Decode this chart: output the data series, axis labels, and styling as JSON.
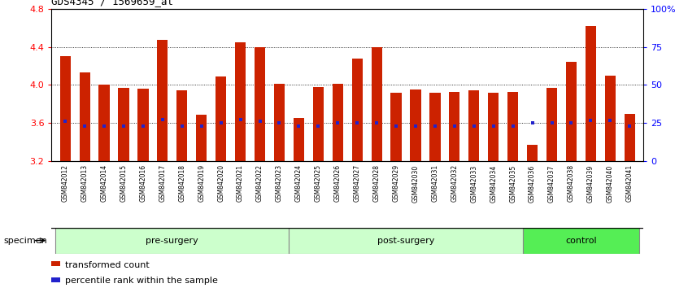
{
  "title": "GDS4345 / 1569659_at",
  "samples": [
    "GSM842012",
    "GSM842013",
    "GSM842014",
    "GSM842015",
    "GSM842016",
    "GSM842017",
    "GSM842018",
    "GSM842019",
    "GSM842020",
    "GSM842021",
    "GSM842022",
    "GSM842023",
    "GSM842024",
    "GSM842025",
    "GSM842026",
    "GSM842027",
    "GSM842028",
    "GSM842029",
    "GSM842030",
    "GSM842031",
    "GSM842032",
    "GSM842033",
    "GSM842034",
    "GSM842035",
    "GSM842036",
    "GSM842037",
    "GSM842038",
    "GSM842039",
    "GSM842040",
    "GSM842041"
  ],
  "bar_values": [
    4.3,
    4.13,
    4.0,
    3.97,
    3.96,
    4.47,
    3.94,
    3.69,
    4.09,
    4.45,
    4.4,
    4.01,
    3.65,
    3.98,
    4.01,
    4.28,
    4.4,
    3.92,
    3.95,
    3.92,
    3.93,
    3.94,
    3.92,
    3.93,
    3.37,
    3.97,
    4.24,
    4.62,
    4.1,
    3.7
  ],
  "percentile_values": [
    3.62,
    3.57,
    3.57,
    3.57,
    3.57,
    3.64,
    3.57,
    3.57,
    3.6,
    3.64,
    3.62,
    3.6,
    3.57,
    3.57,
    3.6,
    3.6,
    3.6,
    3.57,
    3.57,
    3.57,
    3.57,
    3.57,
    3.57,
    3.57,
    3.6,
    3.6,
    3.6,
    3.63,
    3.63,
    3.57
  ],
  "groups": [
    {
      "label": "pre-surgery",
      "start": 0,
      "end": 11,
      "color": "#ccffcc"
    },
    {
      "label": "post-surgery",
      "start": 12,
      "end": 23,
      "color": "#ccffcc"
    },
    {
      "label": "control",
      "start": 24,
      "end": 29,
      "color": "#66dd66"
    }
  ],
  "ylim": [
    3.2,
    4.8
  ],
  "yticks_left": [
    3.2,
    3.6,
    4.0,
    4.4,
    4.8
  ],
  "yticks_right": [
    0,
    25,
    50,
    75,
    100
  ],
  "ytick_right_labels": [
    "0",
    "25",
    "50",
    "75",
    "100%"
  ],
  "bar_color": "#cc2200",
  "dot_color": "#2222cc",
  "bar_bottom": 3.2,
  "legend_transformed": "transformed count",
  "legend_percentile": "percentile rank within the sample",
  "specimen_label": "specimen"
}
